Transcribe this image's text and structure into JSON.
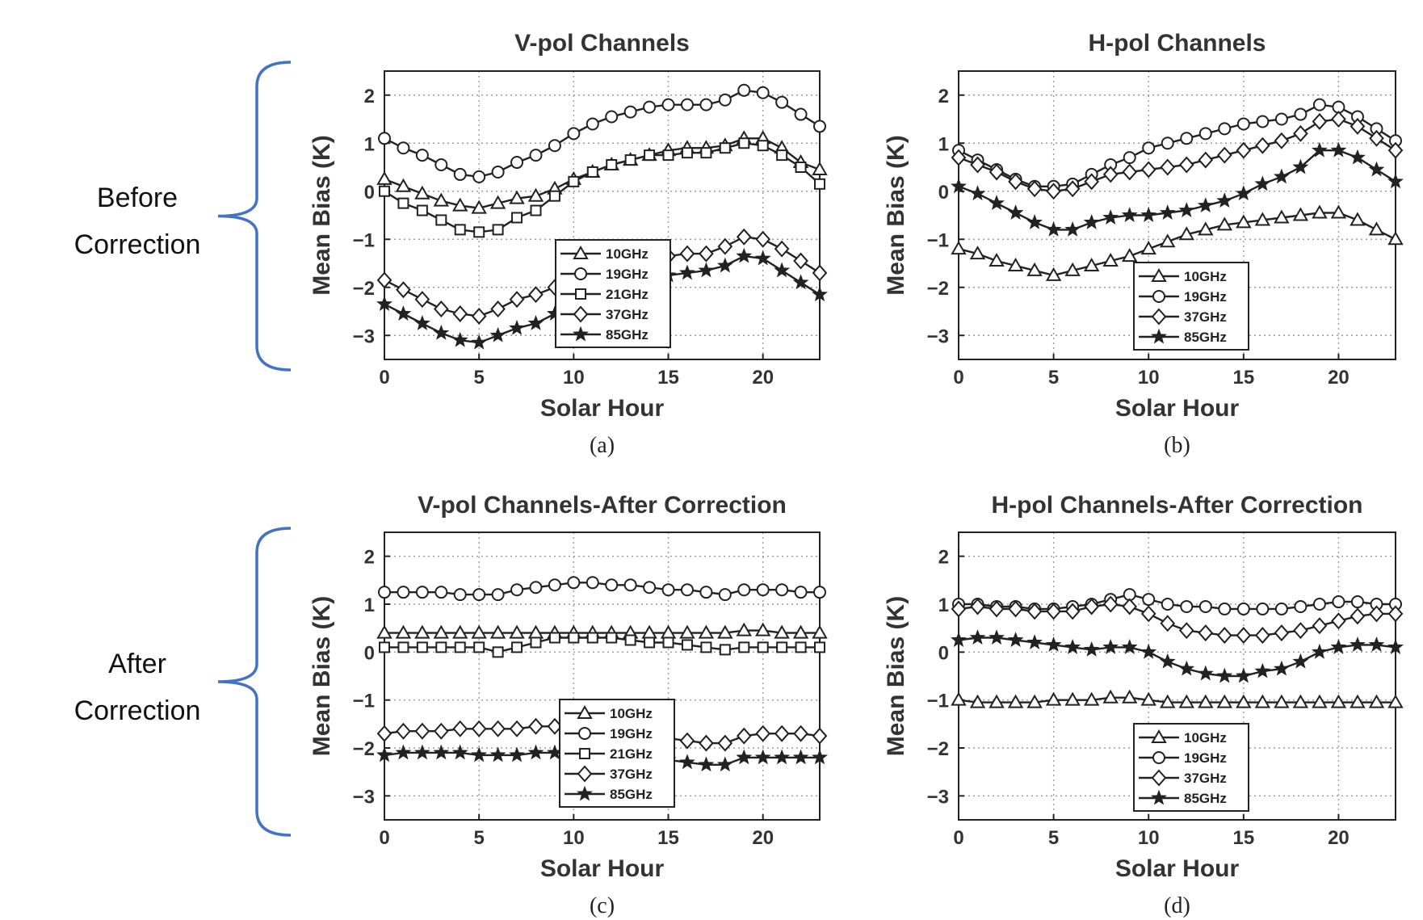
{
  "brackets": [
    {
      "label_lines": [
        "Before",
        "Correction"
      ],
      "color": "#4472C4"
    },
    {
      "label_lines": [
        "After",
        "Correction"
      ],
      "color": "#4472C4"
    }
  ],
  "chart_data": [
    {
      "type": "line",
      "panel_label": "(a)",
      "title": "V-pol Channels",
      "xlabel": "Solar Hour",
      "ylabel": "Mean Bias (K)",
      "xlim": [
        0,
        23
      ],
      "ylim": [
        -3.5,
        2.5
      ],
      "xticks": [
        0,
        5,
        10,
        15,
        20
      ],
      "yticks": [
        -3,
        -2,
        -1,
        0,
        1,
        2
      ],
      "ytick_labels": [
        "−3",
        "−2",
        "−1",
        "0",
        "1",
        "2"
      ],
      "grid": true,
      "legend_position": "lower-center",
      "x": [
        0,
        1,
        2,
        3,
        4,
        5,
        6,
        7,
        8,
        9,
        10,
        11,
        12,
        13,
        14,
        15,
        16,
        17,
        18,
        19,
        20,
        21,
        22,
        23
      ],
      "series": [
        {
          "name": "10GHz",
          "marker": "triangle",
          "values": [
            0.25,
            0.1,
            -0.05,
            -0.2,
            -0.3,
            -0.35,
            -0.25,
            -0.15,
            -0.1,
            0.05,
            0.25,
            0.4,
            0.55,
            0.65,
            0.75,
            0.85,
            0.9,
            0.9,
            0.95,
            1.1,
            1.1,
            0.9,
            0.6,
            0.45
          ]
        },
        {
          "name": "19GHz",
          "marker": "circle",
          "values": [
            1.1,
            0.9,
            0.75,
            0.55,
            0.35,
            0.3,
            0.4,
            0.6,
            0.75,
            0.95,
            1.2,
            1.4,
            1.55,
            1.65,
            1.75,
            1.8,
            1.8,
            1.8,
            1.9,
            2.1,
            2.05,
            1.85,
            1.6,
            1.35
          ]
        },
        {
          "name": "21GHz",
          "marker": "square",
          "values": [
            0.0,
            -0.25,
            -0.4,
            -0.6,
            -0.8,
            -0.85,
            -0.8,
            -0.55,
            -0.4,
            -0.1,
            0.2,
            0.4,
            0.55,
            0.65,
            0.75,
            0.75,
            0.8,
            0.8,
            0.9,
            1.0,
            0.95,
            0.75,
            0.5,
            0.15
          ]
        },
        {
          "name": "37GHz",
          "marker": "diamond",
          "values": [
            -1.85,
            -2.05,
            -2.25,
            -2.45,
            -2.55,
            -2.6,
            -2.45,
            -2.25,
            -2.15,
            -2.0,
            -1.85,
            -1.7,
            -1.55,
            -1.45,
            -1.4,
            -1.35,
            -1.3,
            -1.3,
            -1.15,
            -0.95,
            -1.0,
            -1.2,
            -1.45,
            -1.7
          ]
        },
        {
          "name": "85GHz",
          "marker": "star",
          "values": [
            -2.35,
            -2.55,
            -2.75,
            -2.95,
            -3.1,
            -3.15,
            -3.0,
            -2.85,
            -2.75,
            -2.55,
            -2.35,
            -2.2,
            -2.05,
            -1.95,
            -1.85,
            -1.75,
            -1.7,
            -1.65,
            -1.55,
            -1.35,
            -1.4,
            -1.65,
            -1.9,
            -2.15
          ]
        }
      ]
    },
    {
      "type": "line",
      "panel_label": "(b)",
      "title": "H-pol Channels",
      "xlabel": "Solar Hour",
      "ylabel": "Mean Bias (K)",
      "xlim": [
        0,
        23
      ],
      "ylim": [
        -3.5,
        2.5
      ],
      "xticks": [
        0,
        5,
        10,
        15,
        20
      ],
      "yticks": [
        -3,
        -2,
        -1,
        0,
        1,
        2
      ],
      "ytick_labels": [
        "−3",
        "−2",
        "−1",
        "0",
        "1",
        "2"
      ],
      "grid": true,
      "legend_position": "lower-center",
      "x": [
        0,
        1,
        2,
        3,
        4,
        5,
        6,
        7,
        8,
        9,
        10,
        11,
        12,
        13,
        14,
        15,
        16,
        17,
        18,
        19,
        20,
        21,
        22,
        23
      ],
      "series": [
        {
          "name": "10GHz",
          "marker": "triangle",
          "values": [
            -1.2,
            -1.3,
            -1.45,
            -1.55,
            -1.65,
            -1.75,
            -1.65,
            -1.55,
            -1.45,
            -1.35,
            -1.2,
            -1.05,
            -0.9,
            -0.8,
            -0.7,
            -0.65,
            -0.6,
            -0.55,
            -0.5,
            -0.45,
            -0.45,
            -0.6,
            -0.8,
            -1.0
          ]
        },
        {
          "name": "19GHz",
          "marker": "circle",
          "values": [
            0.85,
            0.65,
            0.45,
            0.25,
            0.1,
            0.1,
            0.15,
            0.35,
            0.55,
            0.7,
            0.9,
            1.0,
            1.1,
            1.2,
            1.3,
            1.4,
            1.45,
            1.5,
            1.6,
            1.8,
            1.75,
            1.55,
            1.3,
            1.05
          ]
        },
        {
          "name": "37GHz",
          "marker": "diamond",
          "values": [
            0.7,
            0.55,
            0.4,
            0.2,
            0.05,
            0.0,
            0.05,
            0.2,
            0.35,
            0.4,
            0.45,
            0.5,
            0.55,
            0.65,
            0.75,
            0.85,
            0.95,
            1.05,
            1.2,
            1.45,
            1.5,
            1.35,
            1.1,
            0.85
          ]
        },
        {
          "name": "85GHz",
          "marker": "star",
          "values": [
            0.1,
            -0.05,
            -0.25,
            -0.45,
            -0.65,
            -0.8,
            -0.8,
            -0.65,
            -0.55,
            -0.5,
            -0.5,
            -0.45,
            -0.4,
            -0.3,
            -0.2,
            -0.05,
            0.15,
            0.3,
            0.5,
            0.85,
            0.85,
            0.7,
            0.45,
            0.2
          ]
        }
      ]
    },
    {
      "type": "line",
      "panel_label": "(c)",
      "title": "V-pol Channels-After Correction",
      "xlabel": "Solar Hour",
      "ylabel": "Mean Bias (K)",
      "xlim": [
        0,
        23
      ],
      "ylim": [
        -3.5,
        2.5
      ],
      "xticks": [
        0,
        5,
        10,
        15,
        20
      ],
      "yticks": [
        -3,
        -2,
        -1,
        0,
        1,
        2
      ],
      "ytick_labels": [
        "−3",
        "−2",
        "−1",
        "0",
        "1",
        "2"
      ],
      "grid": true,
      "legend_position": "lower-center",
      "x": [
        0,
        1,
        2,
        3,
        4,
        5,
        6,
        7,
        8,
        9,
        10,
        11,
        12,
        13,
        14,
        15,
        16,
        17,
        18,
        19,
        20,
        21,
        22,
        23
      ],
      "series": [
        {
          "name": "10GHz",
          "marker": "triangle",
          "values": [
            0.4,
            0.4,
            0.4,
            0.4,
            0.4,
            0.4,
            0.4,
            0.4,
            0.4,
            0.4,
            0.4,
            0.4,
            0.4,
            0.4,
            0.4,
            0.4,
            0.4,
            0.4,
            0.4,
            0.45,
            0.45,
            0.4,
            0.4,
            0.4
          ]
        },
        {
          "name": "19GHz",
          "marker": "circle",
          "values": [
            1.25,
            1.25,
            1.25,
            1.25,
            1.2,
            1.2,
            1.2,
            1.3,
            1.35,
            1.4,
            1.45,
            1.45,
            1.4,
            1.4,
            1.35,
            1.3,
            1.3,
            1.25,
            1.2,
            1.3,
            1.3,
            1.3,
            1.25,
            1.25
          ]
        },
        {
          "name": "21GHz",
          "marker": "square",
          "values": [
            0.1,
            0.1,
            0.1,
            0.1,
            0.1,
            0.1,
            0.0,
            0.1,
            0.2,
            0.3,
            0.3,
            0.3,
            0.3,
            0.25,
            0.2,
            0.2,
            0.15,
            0.1,
            0.05,
            0.1,
            0.1,
            0.1,
            0.1,
            0.1
          ]
        },
        {
          "name": "37GHz",
          "marker": "diamond",
          "values": [
            -1.7,
            -1.65,
            -1.65,
            -1.65,
            -1.6,
            -1.6,
            -1.6,
            -1.6,
            -1.55,
            -1.55,
            -1.6,
            -1.65,
            -1.7,
            -1.75,
            -1.75,
            -1.8,
            -1.85,
            -1.9,
            -1.9,
            -1.75,
            -1.7,
            -1.7,
            -1.7,
            -1.75
          ]
        },
        {
          "name": "85GHz",
          "marker": "star",
          "values": [
            -2.15,
            -2.1,
            -2.1,
            -2.1,
            -2.1,
            -2.15,
            -2.15,
            -2.15,
            -2.1,
            -2.1,
            -2.1,
            -2.15,
            -2.15,
            -2.2,
            -2.2,
            -2.25,
            -2.3,
            -2.35,
            -2.35,
            -2.2,
            -2.2,
            -2.2,
            -2.2,
            -2.2
          ]
        }
      ]
    },
    {
      "type": "line",
      "panel_label": "(d)",
      "title": "H-pol Channels-After Correction",
      "xlabel": "Solar Hour",
      "ylabel": "Mean Bias (K)",
      "xlim": [
        0,
        23
      ],
      "ylim": [
        -3.5,
        2.5
      ],
      "xticks": [
        0,
        5,
        10,
        15,
        20
      ],
      "yticks": [
        -3,
        -2,
        -1,
        0,
        1,
        2
      ],
      "ytick_labels": [
        "−3",
        "−2",
        "−1",
        "0",
        "1",
        "2"
      ],
      "grid": true,
      "legend_position": "lower-center",
      "x": [
        0,
        1,
        2,
        3,
        4,
        5,
        6,
        7,
        8,
        9,
        10,
        11,
        12,
        13,
        14,
        15,
        16,
        17,
        18,
        19,
        20,
        21,
        22,
        23
      ],
      "series": [
        {
          "name": "10GHz",
          "marker": "triangle",
          "values": [
            -1.0,
            -1.05,
            -1.05,
            -1.05,
            -1.05,
            -1.0,
            -1.0,
            -1.0,
            -0.95,
            -0.95,
            -1.0,
            -1.05,
            -1.05,
            -1.05,
            -1.05,
            -1.05,
            -1.05,
            -1.05,
            -1.05,
            -1.05,
            -1.05,
            -1.05,
            -1.05,
            -1.05
          ]
        },
        {
          "name": "19GHz",
          "marker": "circle",
          "values": [
            1.0,
            1.0,
            0.95,
            0.95,
            0.9,
            0.9,
            0.95,
            1.0,
            1.1,
            1.2,
            1.1,
            1.0,
            0.95,
            0.95,
            0.9,
            0.9,
            0.9,
            0.9,
            0.95,
            1.0,
            1.05,
            1.05,
            1.0,
            1.0
          ]
        },
        {
          "name": "37GHz",
          "marker": "diamond",
          "values": [
            0.9,
            0.95,
            0.9,
            0.9,
            0.85,
            0.85,
            0.85,
            0.95,
            1.0,
            0.95,
            0.8,
            0.6,
            0.45,
            0.4,
            0.35,
            0.35,
            0.35,
            0.4,
            0.45,
            0.55,
            0.65,
            0.75,
            0.8,
            0.8
          ]
        },
        {
          "name": "85GHz",
          "marker": "star",
          "values": [
            0.25,
            0.3,
            0.3,
            0.25,
            0.2,
            0.15,
            0.1,
            0.05,
            0.1,
            0.1,
            0.0,
            -0.2,
            -0.35,
            -0.45,
            -0.5,
            -0.5,
            -0.4,
            -0.35,
            -0.2,
            0.0,
            0.1,
            0.15,
            0.15,
            0.1
          ]
        }
      ]
    }
  ]
}
